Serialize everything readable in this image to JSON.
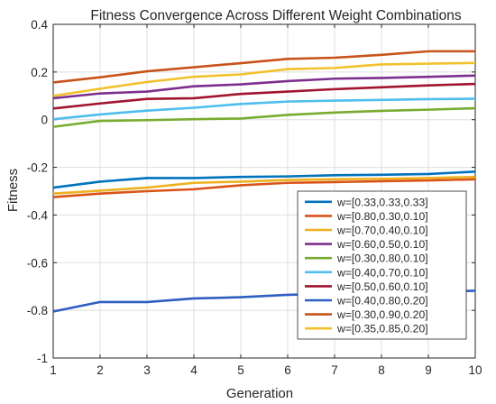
{
  "chart_data": {
    "type": "line",
    "title": "Fitness Convergence Across Different Weight Combinations",
    "xlabel": "Generation",
    "ylabel": "Fitness",
    "xlim": [
      1,
      10
    ],
    "ylim": [
      -1,
      0.4
    ],
    "x": [
      1,
      2,
      3,
      4,
      5,
      6,
      7,
      8,
      9,
      10
    ],
    "xticks": [
      "1",
      "2",
      "3",
      "4",
      "5",
      "6",
      "7",
      "8",
      "9",
      "10"
    ],
    "yticks": [
      {
        "value": 0.4,
        "label": "0.4"
      },
      {
        "value": 0.2,
        "label": "0.2"
      },
      {
        "value": 0,
        "label": "0"
      },
      {
        "value": -0.2,
        "label": "-0.2"
      },
      {
        "value": -0.4,
        "label": "-0.4"
      },
      {
        "value": -0.6,
        "label": "-0.6"
      },
      {
        "value": -0.8,
        "label": "-0.8"
      },
      {
        "value": -1,
        "label": "-1"
      }
    ],
    "grid": true,
    "legend_position": "bottom-right",
    "series": [
      {
        "name": "w=[0.33,0.33,0.33]",
        "color": "#0072BD",
        "values": [
          -0.285,
          -0.26,
          -0.245,
          -0.245,
          -0.24,
          -0.238,
          -0.233,
          -0.231,
          -0.228,
          -0.218
        ]
      },
      {
        "name": "w=[0.80,0.30,0.10]",
        "color": "#D95319",
        "values": [
          -0.325,
          -0.31,
          -0.3,
          -0.292,
          -0.275,
          -0.265,
          -0.262,
          -0.258,
          -0.255,
          -0.25
        ]
      },
      {
        "name": "w=[0.70,0.40,0.10]",
        "color": "#EDB120",
        "values": [
          -0.31,
          -0.298,
          -0.285,
          -0.265,
          -0.26,
          -0.253,
          -0.25,
          -0.248,
          -0.245,
          -0.24
        ]
      },
      {
        "name": "w=[0.60,0.50,0.10]",
        "color": "#7E2F8E",
        "values": [
          0.09,
          0.11,
          0.118,
          0.14,
          0.148,
          0.162,
          0.172,
          0.175,
          0.18,
          0.185
        ]
      },
      {
        "name": "w=[0.30,0.80,0.10]",
        "color": "#77AC30",
        "values": [
          -0.03,
          -0.005,
          -0.002,
          0.002,
          0.005,
          0.02,
          0.03,
          0.037,
          0.042,
          0.048
        ]
      },
      {
        "name": "w=[0.40,0.70,0.10]",
        "color": "#4DBEEE",
        "values": [
          0.002,
          0.022,
          0.038,
          0.05,
          0.066,
          0.076,
          0.08,
          0.083,
          0.086,
          0.088
        ]
      },
      {
        "name": "w=[0.50,0.60,0.10]",
        "color": "#A2142F",
        "values": [
          0.047,
          0.068,
          0.087,
          0.09,
          0.108,
          0.118,
          0.128,
          0.136,
          0.144,
          0.15
        ]
      },
      {
        "name": "w=[0.40,0.80,0.20]",
        "color": "#2E5FC0",
        "values": [
          -0.805,
          -0.765,
          -0.765,
          -0.75,
          -0.745,
          -0.735,
          -0.73,
          -0.725,
          -0.722,
          -0.718
        ]
      },
      {
        "name": "w=[0.30,0.90,0.20]",
        "color": "#C8531A",
        "values": [
          0.156,
          0.178,
          0.203,
          0.22,
          0.237,
          0.255,
          0.26,
          0.272,
          0.287,
          0.287
        ]
      },
      {
        "name": "w=[0.35,0.85,0.20]",
        "color": "#F2C12E",
        "values": [
          0.1,
          0.13,
          0.158,
          0.18,
          0.19,
          0.212,
          0.217,
          0.232,
          0.235,
          0.238
        ]
      }
    ]
  }
}
